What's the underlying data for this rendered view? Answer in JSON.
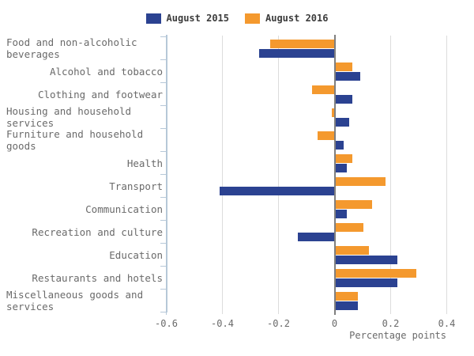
{
  "chart_data": {
    "type": "bar",
    "orientation": "horizontal",
    "title": "",
    "xlabel": "Percentage points",
    "categories": [
      "Food and non-alcoholic beverages",
      "Alcohol and tobacco",
      "Clothing and footwear",
      "Housing and household services",
      "Furniture and household goods",
      "Health",
      "Transport",
      "Communication",
      "Recreation and culture",
      "Education",
      "Restaurants and hotels",
      "Miscellaneous goods and services"
    ],
    "series": [
      {
        "name": "August 2015",
        "color": "#2B4291",
        "values": [
          -0.27,
          0.09,
          0.06,
          0.05,
          0.03,
          0.04,
          -0.41,
          0.04,
          -0.13,
          0.22,
          0.22,
          0.08
        ]
      },
      {
        "name": "August 2016",
        "color": "#F4992E",
        "values": [
          -0.23,
          0.06,
          -0.08,
          -0.01,
          -0.06,
          0.06,
          0.18,
          0.13,
          0.1,
          0.12,
          0.29,
          0.08
        ]
      }
    ],
    "xlim": [
      -0.6,
      0.4
    ],
    "x_tick_labels": [
      "-0.6",
      "-0.4",
      "-0.2",
      "0",
      "0.2",
      "0.4"
    ],
    "bar_display_order_top_to_bottom": [
      "August 2016",
      "August 2015"
    ],
    "grid": true,
    "legend_position": "top-center"
  }
}
